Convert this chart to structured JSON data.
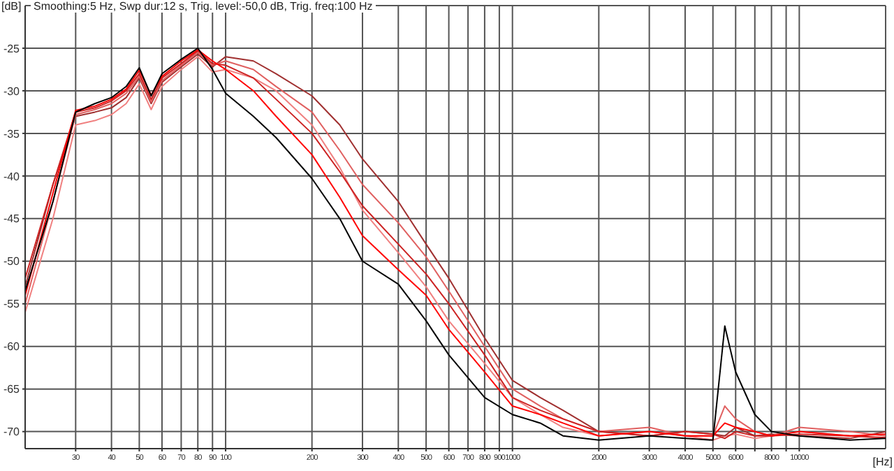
{
  "chart_data": {
    "type": "line",
    "title": "Smoothing:5 Hz, Swp dur:12 s, Trig. level:-50,0 dB, Trig. freq:100 Hz",
    "xlabel": "[Hz]",
    "ylabel": "[dB]",
    "log": "x",
    "grid": true,
    "x": [
      20,
      25,
      30,
      35,
      40,
      45,
      50,
      55,
      60,
      70,
      80,
      90,
      100,
      125,
      150,
      200,
      250,
      300,
      400,
      500,
      600,
      800,
      1000,
      1250,
      1500,
      2000,
      3000,
      4000,
      5000,
      5500,
      6000,
      7000,
      8000,
      10000,
      15000,
      20000
    ],
    "xlim": [
      20,
      20000
    ],
    "xticks": [
      30,
      40,
      50,
      60,
      70,
      80,
      90,
      100,
      200,
      300,
      400,
      500,
      600,
      700,
      800,
      900,
      1000,
      2000,
      3000,
      4000,
      5000,
      6000,
      {
        "value": 7000,
        "label": null
      },
      8000,
      {
        "value": 9000,
        "label": null
      },
      10000
    ],
    "ylim": [
      -72,
      -20
    ],
    "yticks": [
      -25,
      -30,
      -35,
      -40,
      -45,
      -50,
      -55,
      -60,
      -65,
      -70
    ],
    "series": [
      {
        "color": "#f08080",
        "values": [
          -56,
          -45,
          -34,
          -33.5,
          -32.8,
          -31.5,
          -29.2,
          -32.2,
          -29.5,
          -27.5,
          -26,
          -27.8,
          -27.5,
          -28.5,
          -30,
          -34,
          -39,
          -44,
          -49,
          -53,
          -57,
          -62,
          -66,
          -68,
          -69.5,
          -70.5,
          -70,
          -70.5,
          -71,
          -70.5,
          -70.3,
          -70.8,
          -70.5,
          -70,
          -70.5,
          -70.8
        ]
      },
      {
        "color": "#a03030",
        "values": [
          -53,
          -41,
          -33,
          -32.5,
          -32,
          -30.8,
          -28.5,
          -31.5,
          -29,
          -27.2,
          -25.7,
          -27.2,
          -26,
          -26.5,
          -28,
          -30.6,
          -34,
          -38,
          -43,
          -48,
          -52,
          -59,
          -64,
          -66,
          -67.5,
          -70,
          -70.5,
          -70,
          -70.3,
          -70.5,
          -69.5,
          -70.5,
          -70.3,
          -70.5,
          -70.8,
          -70
        ]
      },
      {
        "color": "#e06060",
        "values": [
          -55,
          -43,
          -32.8,
          -32.2,
          -31.5,
          -30.3,
          -28.3,
          -31.3,
          -28.8,
          -27,
          -25.5,
          -27,
          -26.5,
          -27.5,
          -29.5,
          -32.5,
          -37,
          -41,
          -45.5,
          -49.5,
          -53.5,
          -60,
          -65,
          -67,
          -68.5,
          -70,
          -69.5,
          -70.5,
          -70.5,
          -67,
          -68.5,
          -70,
          -70.5,
          -69.5,
          -70,
          -70.5
        ]
      },
      {
        "color": "#cc2222",
        "values": [
          -52,
          -41,
          -32.5,
          -32,
          -31.2,
          -30,
          -28,
          -31,
          -28.5,
          -26.8,
          -25.3,
          -26.8,
          -27,
          -28.5,
          -31,
          -35,
          -39.5,
          -43.5,
          -48,
          -51.5,
          -55,
          -61,
          -66,
          -67.5,
          -68.5,
          -70,
          -70.5,
          -70,
          -70.3,
          -70.8,
          -70,
          -70.5,
          -70.5,
          -70.3,
          -70.5,
          -70.7
        ]
      },
      {
        "color": "#ff0000",
        "values": [
          -54,
          -42,
          -32.3,
          -31.8,
          -31,
          -29.8,
          -27.6,
          -30.5,
          -28.3,
          -26.5,
          -25.2,
          -26.5,
          -27.5,
          -30,
          -33,
          -37.5,
          -42.5,
          -47,
          -51,
          -54,
          -58,
          -63,
          -67,
          -68,
          -69,
          -70.5,
          -70,
          -70.5,
          -70.5,
          -69,
          -69.5,
          -70,
          -70.5,
          -70,
          -70.5,
          -70.3
        ]
      },
      {
        "color": "#000000",
        "values": [
          -53.5,
          -43,
          -32.5,
          -31.5,
          -30.8,
          -29.5,
          -27.3,
          -30.6,
          -28,
          -26.3,
          -25,
          -27.5,
          -30.3,
          -33,
          -35.5,
          -40.3,
          -45,
          -50,
          -52.7,
          -57,
          -61,
          -66,
          -68,
          -69,
          -70.5,
          -71,
          -70.5,
          -70.8,
          -71,
          -57.6,
          -63,
          -68,
          -70,
          -70.5,
          -71,
          -70.8
        ]
      }
    ]
  }
}
